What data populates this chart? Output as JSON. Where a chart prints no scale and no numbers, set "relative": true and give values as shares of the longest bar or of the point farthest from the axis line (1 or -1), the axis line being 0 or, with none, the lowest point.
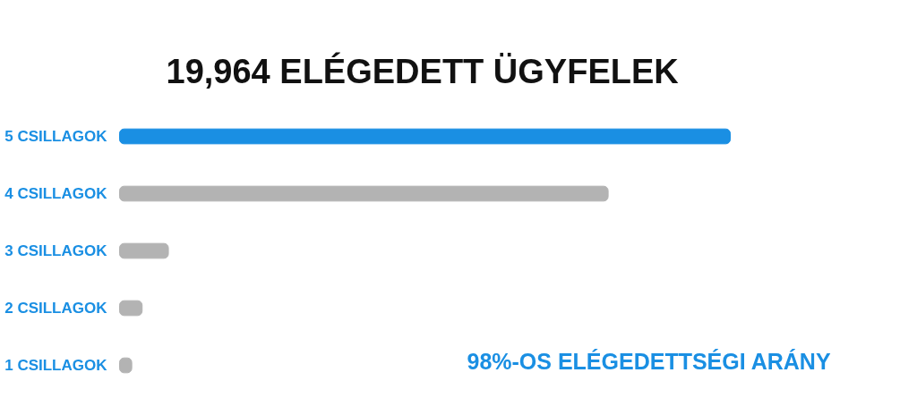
{
  "chart_data": {
    "type": "bar",
    "orientation": "horizontal",
    "relative": true,
    "title": "19,964 ELÉGEDETT ÜGYFELEK",
    "categories": [
      "5 CSILLAGOK",
      "4 CSILLAGOK",
      "3 CSILLAGOK",
      "2 CSILLAGOK",
      "1 CSILLAGOK"
    ],
    "values": [
      1,
      0.8,
      0.08,
      0.037,
      0.02
    ],
    "colors": [
      "#1a8fe3",
      "#b3b3b3",
      "#b3b3b3",
      "#b3b3b3",
      "#b3b3b3"
    ],
    "annotations": [
      "98%-OS ELÉGEDETTSÉGI ARÁNY"
    ],
    "grid": false
  }
}
